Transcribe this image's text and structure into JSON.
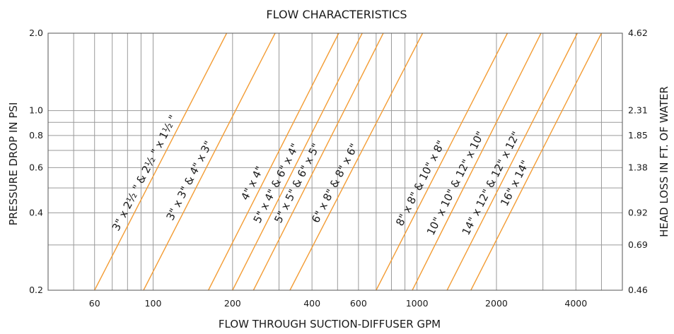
{
  "chart_data": {
    "type": "line",
    "title": "FLOW CHARACTERISTICS",
    "xlabel": "FLOW THROUGH SUCTION-DIFFUSER GPM",
    "ylabel": "PRESSURE DROP IN PSI",
    "ylabel_right": "HEAD LOSS IN FT. OF WATER",
    "x_scale": "log",
    "y_scale": "log",
    "xlim": [
      40,
      6000
    ],
    "ylim": [
      0.2,
      2.0
    ],
    "grid": true,
    "x_ticks": [
      {
        "value": 60,
        "label": "60"
      },
      {
        "value": 100,
        "label": "100"
      },
      {
        "value": 200,
        "label": "200"
      },
      {
        "value": 400,
        "label": "400"
      },
      {
        "value": 600,
        "label": "600"
      },
      {
        "value": 1000,
        "label": "1000"
      },
      {
        "value": 2000,
        "label": "2000"
      },
      {
        "value": 4000,
        "label": "4000"
      }
    ],
    "x_gridlines": [
      50,
      60,
      70,
      80,
      90,
      100,
      200,
      300,
      400,
      500,
      600,
      700,
      800,
      900,
      1000,
      2000,
      3000,
      4000,
      5000
    ],
    "y_ticks_left": [
      {
        "value": 0.2,
        "label": "0.2"
      },
      {
        "value": 0.4,
        "label": "0.4"
      },
      {
        "value": 0.6,
        "label": "0.6"
      },
      {
        "value": 0.8,
        "label": "0.8"
      },
      {
        "value": 1.0,
        "label": "1.0"
      },
      {
        "value": 2.0,
        "label": "2.0"
      }
    ],
    "y_ticks_right": [
      {
        "value": 0.2,
        "label": "0.46"
      },
      {
        "value": 0.3,
        "label": "0.69"
      },
      {
        "value": 0.4,
        "label": "0.92"
      },
      {
        "value": 0.6,
        "label": "1.38"
      },
      {
        "value": 0.8,
        "label": "1.85"
      },
      {
        "value": 1.0,
        "label": "2.31"
      },
      {
        "value": 2.0,
        "label": "4.62"
      }
    ],
    "y_gridlines": [
      0.2,
      0.3,
      0.4,
      0.5,
      0.6,
      0.7,
      0.8,
      0.9,
      1.0,
      2.0
    ],
    "line_color": "#F39C34",
    "grid_color": "#9a9a9a",
    "series": [
      {
        "name": "3\" x 2½ \" & 2½ \" x 1½ \"",
        "x": [
          60,
          190
        ],
        "y": [
          0.2,
          2.0
        ]
      },
      {
        "name": "3\" x 3\" & 4\" x 3\"",
        "x": [
          92,
          290
        ],
        "y": [
          0.2,
          2.0
        ]
      },
      {
        "name": "4\" x 4\"",
        "x": [
          162,
          505
        ],
        "y": [
          0.2,
          2.0
        ]
      },
      {
        "name": "5\" x 4\" & 6\" x 4\"",
        "x": [
          200,
          620
        ],
        "y": [
          0.2,
          2.0
        ]
      },
      {
        "name": "5\" x 5\" & 6\" x 5\"",
        "x": [
          240,
          745
        ],
        "y": [
          0.2,
          2.0
        ]
      },
      {
        "name": "6\" x 8\" & 8\" x 6\"",
        "x": [
          330,
          1050
        ],
        "y": [
          0.2,
          2.0
        ]
      },
      {
        "name": "8\" x 8\" & 10\" x 8\"",
        "x": [
          700,
          2200
        ],
        "y": [
          0.2,
          2.0
        ]
      },
      {
        "name": "10\" x 10\" & 12\" x 10\"",
        "x": [
          960,
          2950
        ],
        "y": [
          0.2,
          2.0
        ]
      },
      {
        "name": "14\" x 12\" & 12\" x 12\"",
        "x": [
          1300,
          4050
        ],
        "y": [
          0.2,
          2.0
        ]
      },
      {
        "name": "16\" x 14\"",
        "x": [
          1600,
          5000
        ],
        "y": [
          0.2,
          2.0
        ]
      }
    ]
  }
}
